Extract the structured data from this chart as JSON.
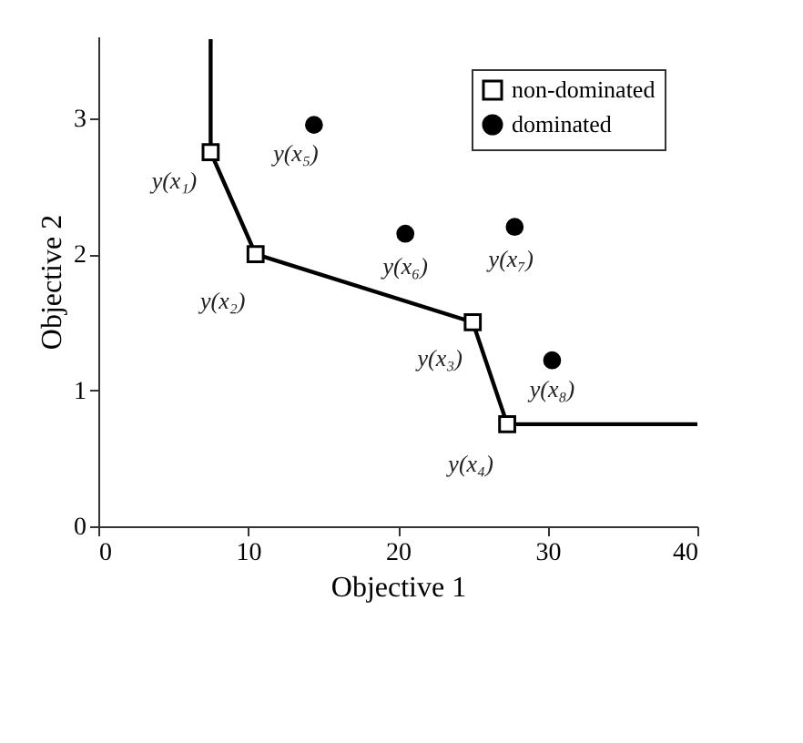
{
  "chart_data": {
    "type": "scatter",
    "xlabel": "Objective 1",
    "ylabel": "Objective 2",
    "xlim": [
      0,
      40
    ],
    "ylim": [
      0,
      3.6
    ],
    "xticks": [
      0,
      10,
      20,
      30,
      40
    ],
    "yticks": [
      0,
      1,
      2,
      3
    ],
    "grid": false,
    "legend": "top right",
    "series": [
      {
        "type": "line",
        "color": "#000000",
        "line_style": "solid",
        "marker": "none",
        "x": [
          7.5,
          7.5,
          10.5,
          25,
          27.3,
          40
        ],
        "values": [
          3.58,
          2.75,
          2.0,
          1.5,
          0.75,
          0.75
        ]
      },
      {
        "name": "non-dominated",
        "color": "#000000",
        "marker": "square",
        "x": [
          7.5,
          10.5,
          25,
          27.3
        ],
        "values": [
          2.75,
          2.0,
          1.5,
          0.75
        ]
      },
      {
        "name": "dominated",
        "color": "#000000",
        "marker": "circle",
        "x": [
          14.4,
          20.5,
          27.8,
          30.3
        ],
        "values": [
          2.95,
          2.15,
          2.2,
          1.22
        ]
      }
    ],
    "annotations": [
      {
        "text": "y(x₁)",
        "x": 7.5,
        "y": 2.75
      },
      {
        "text": "y(x₂)",
        "x": 10.5,
        "y": 2.0
      },
      {
        "text": "y(x₃)",
        "x": 25,
        "y": 1.5
      },
      {
        "text": "y(x₄)",
        "x": 27.3,
        "y": 0.75
      },
      {
        "text": "y(x₅)",
        "x": 14.4,
        "y": 2.95
      },
      {
        "text": "y(x₆)",
        "x": 20.5,
        "y": 2.15
      },
      {
        "text": "y(x₇)",
        "x": 27.8,
        "y": 2.2
      },
      {
        "text": "y(x₈)",
        "x": 30.3,
        "y": 1.22
      }
    ]
  }
}
